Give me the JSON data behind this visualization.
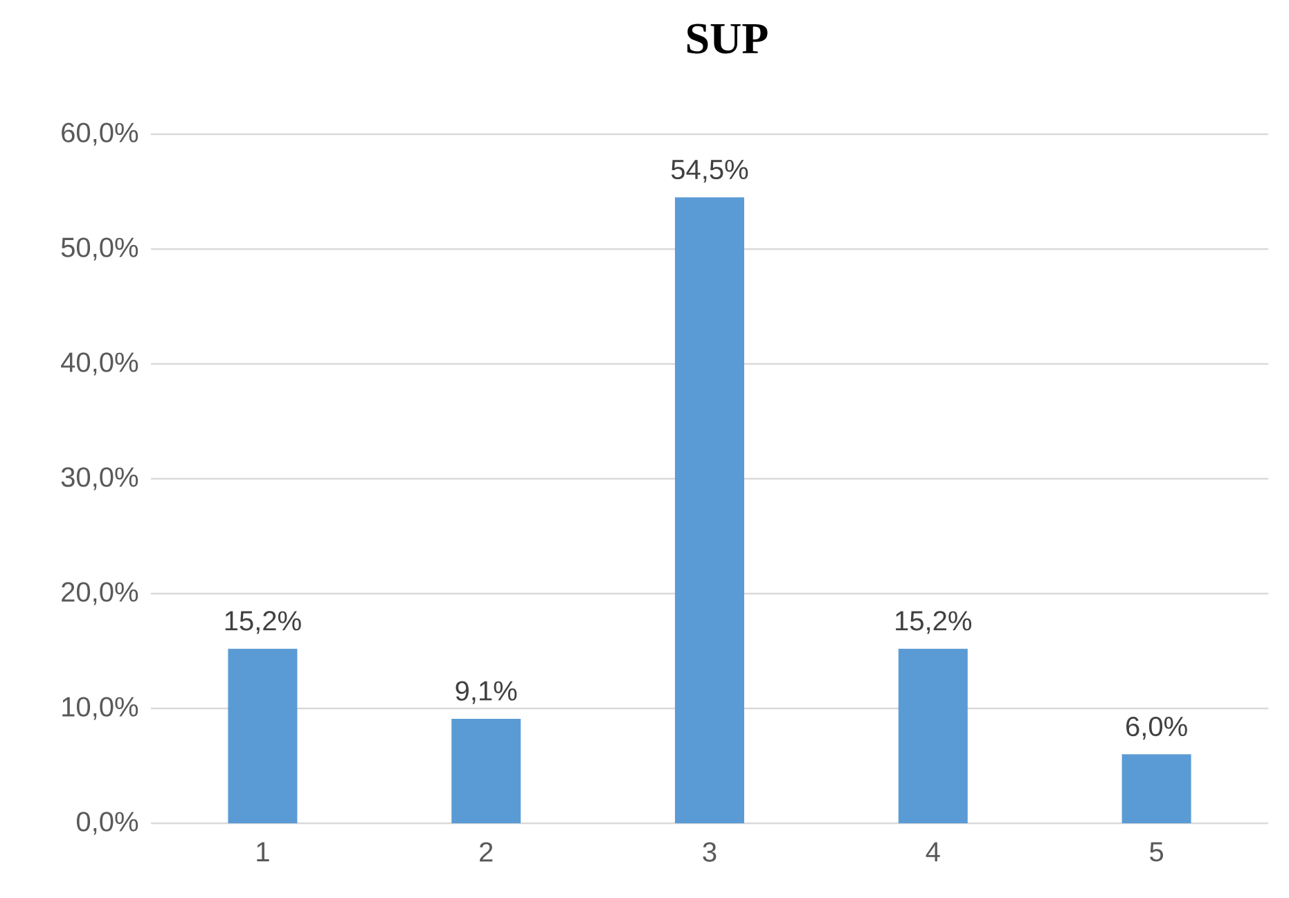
{
  "chart_data": {
    "type": "bar",
    "title": "SUP",
    "categories": [
      "1",
      "2",
      "3",
      "4",
      "5"
    ],
    "values": [
      15.2,
      9.1,
      54.5,
      15.2,
      6.0
    ],
    "value_labels": [
      "15,2%",
      "9,1%",
      "54,5%",
      "15,2%",
      "6,0%"
    ],
    "color": "#5b9bd5",
    "ylim": [
      0,
      60
    ],
    "yticks": [
      {
        "value": 0,
        "label": "0,0%"
      },
      {
        "value": 10,
        "label": "10,0%"
      },
      {
        "value": 20,
        "label": "20,0%"
      },
      {
        "value": 30,
        "label": "30,0%"
      },
      {
        "value": 40,
        "label": "40,0%"
      },
      {
        "value": 50,
        "label": "50,0%"
      },
      {
        "value": 60,
        "label": "60,0%"
      }
    ],
    "grid": "y"
  }
}
